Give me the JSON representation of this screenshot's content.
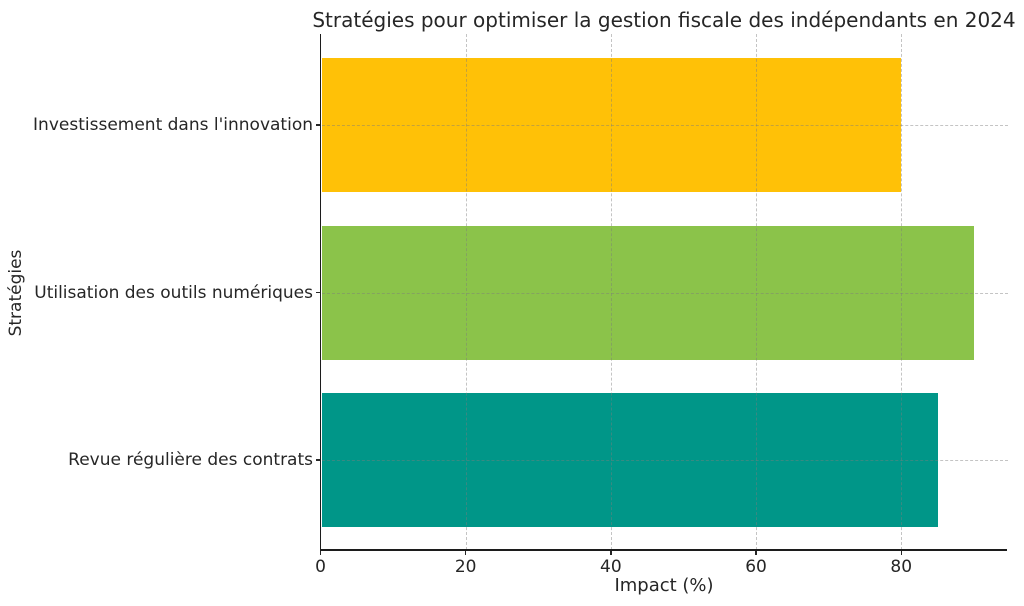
{
  "chart_data": {
    "type": "bar",
    "orientation": "horizontal",
    "title": "Stratégies pour optimiser la gestion fiscale des indépendants en 2024",
    "xlabel": "Impact (%)",
    "ylabel": "Stratégies",
    "categories": [
      "Investissement dans l'innovation",
      "Utilisation des outils numériques",
      "Revue régulière des contrats"
    ],
    "values": [
      80,
      90,
      85
    ],
    "bar_colors": [
      "#FFC107",
      "#8BC34A",
      "#009688"
    ],
    "xticks": [
      0,
      20,
      40,
      60,
      80
    ],
    "xlim": [
      0,
      94.5
    ],
    "grid": "dashed, drawn over bars",
    "legend": "none",
    "background_color": "#ffffff",
    "text_color": "#262626"
  }
}
